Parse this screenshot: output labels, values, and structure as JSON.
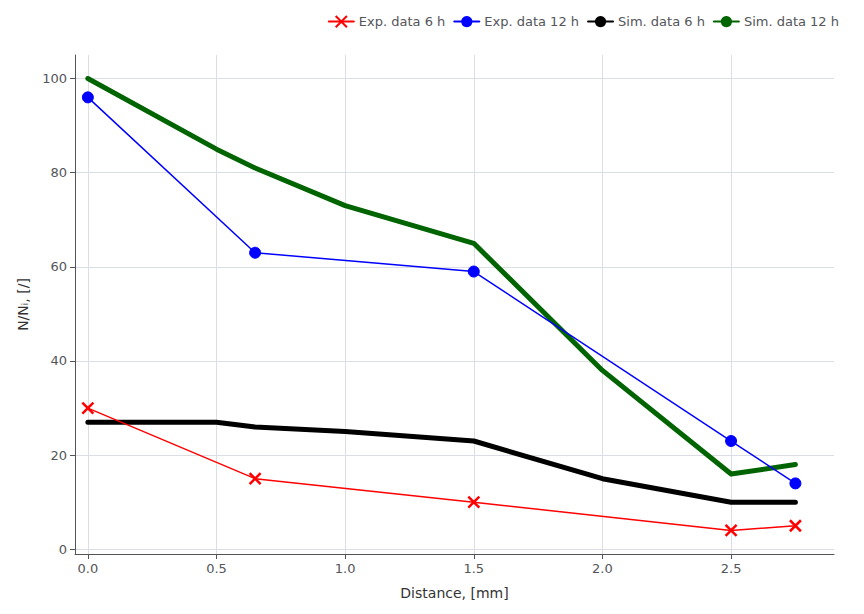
{
  "chart_data": {
    "type": "line",
    "xlabel": "Distance, [mm]",
    "ylabel": "N/Nᵢ, [/]",
    "series": [
      {
        "name": "Exp. data 6 h",
        "color": "#ff0000",
        "marker": "x",
        "line_style": "solid",
        "x": [
          0.0,
          0.65,
          1.5,
          2.5,
          2.75
        ],
        "values": [
          30,
          15,
          10,
          4,
          5
        ]
      },
      {
        "name": "Exp. data 12 h",
        "color": "#0000ff",
        "marker": "circle",
        "line_style": "solid",
        "x": [
          0.0,
          0.65,
          1.5,
          2.5,
          2.75
        ],
        "values": [
          96,
          63,
          59,
          23,
          14
        ]
      },
      {
        "name": "Sim. data 6 h",
        "color": "#000000",
        "marker": "none",
        "line_style": "solid",
        "x": [
          0.0,
          0.5,
          0.65,
          1.0,
          1.5,
          2.0,
          2.5,
          2.75
        ],
        "values": [
          27,
          27,
          26,
          25,
          23,
          15,
          10,
          10
        ]
      },
      {
        "name": "Sim. data 12 h",
        "color": "#006400",
        "marker": "none",
        "line_style": "solid",
        "x": [
          0.0,
          0.5,
          0.65,
          1.0,
          1.5,
          2.0,
          2.5,
          2.75
        ],
        "values": [
          100,
          85,
          81,
          73,
          65,
          38,
          16,
          18
        ]
      }
    ],
    "xlim": [
      -0.05,
      2.9
    ],
    "ylim": [
      -1,
      105
    ],
    "xticks": [
      {
        "value": 0.0,
        "label": "0.0"
      },
      0.5,
      {
        "value": 1.0,
        "label": "1.0"
      },
      1.5,
      {
        "value": 2.0,
        "label": "2.0"
      },
      2.5
    ],
    "yticks": [
      0,
      20,
      40,
      60,
      80,
      100
    ],
    "grid": true,
    "legend": "upper right"
  }
}
